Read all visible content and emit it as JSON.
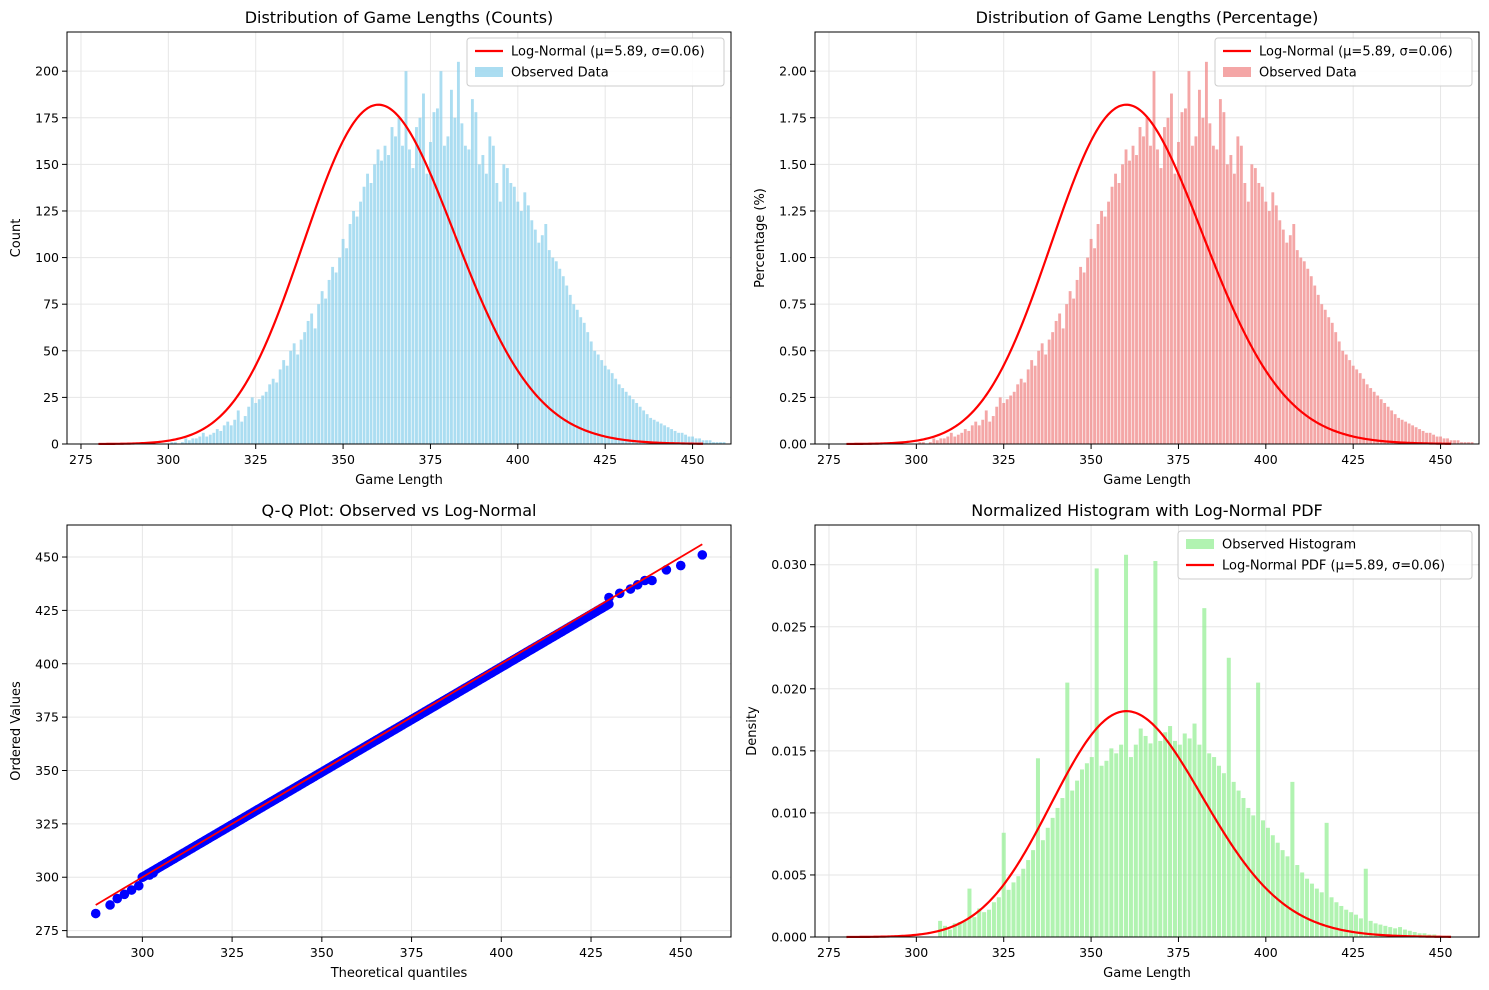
{
  "figure": {
    "colors": {
      "curve": "#ff0000",
      "bars_counts": "#87ceeb",
      "bars_percent": "#f08080",
      "bars_density": "#90ee90",
      "qq_points": "#0000ff",
      "grid": "#e6e6e6"
    }
  },
  "chart_data": [
    {
      "id": "counts",
      "type": "bar",
      "title": "Distribution of Game Lengths (Counts)",
      "xlabel": "Game Length",
      "ylabel": "Count",
      "xlim": [
        271,
        461
      ],
      "ylim": [
        0,
        221
      ],
      "xticks": [
        275,
        300,
        325,
        350,
        375,
        400,
        425,
        450
      ],
      "xtick_labels": [
        "275",
        "300",
        "325",
        "350",
        "375",
        "400",
        "425",
        "450"
      ],
      "yticks": [
        0,
        25,
        50,
        75,
        100,
        125,
        150,
        175,
        200
      ],
      "ytick_labels": [
        "0",
        "25",
        "50",
        "75",
        "100",
        "125",
        "150",
        "175",
        "200"
      ],
      "legend": [
        "Log-Normal (μ=5.89, σ=0.06)",
        "Observed Data"
      ],
      "legend_position": "top-right",
      "grid": true,
      "bar_color": "#87ceeb",
      "bar_alpha": 0.7,
      "x_start": 280,
      "bar_step": 1,
      "values": [
        0,
        0,
        0,
        0,
        0,
        0,
        0,
        0,
        0,
        0,
        0,
        0,
        0,
        0,
        0,
        0,
        0,
        0,
        0,
        0,
        0,
        1,
        1,
        0,
        1,
        3,
        2,
        3,
        3,
        4,
        6,
        4,
        5,
        6,
        8,
        7,
        10,
        12,
        10,
        13,
        18,
        12,
        15,
        20,
        25,
        22,
        24,
        26,
        28,
        32,
        35,
        33,
        40,
        45,
        42,
        50,
        54,
        48,
        56,
        60,
        66,
        70,
        62,
        75,
        82,
        78,
        88,
        95,
        92,
        100,
        110,
        105,
        118,
        125,
        122,
        130,
        138,
        145,
        140,
        150,
        158,
        152,
        160,
        155,
        170,
        165,
        175,
        160,
        200,
        158,
        148,
        170,
        175,
        188,
        145,
        162,
        178,
        180,
        200,
        160,
        165,
        190,
        175,
        205,
        172,
        160,
        158,
        185,
        178,
        150,
        155,
        145,
        165,
        160,
        140,
        130,
        150,
        148,
        140,
        138,
        130,
        125,
        135,
        128,
        120,
        115,
        108,
        112,
        118,
        104,
        100,
        98,
        94,
        90,
        85,
        80,
        75,
        72,
        68,
        65,
        60,
        55,
        50,
        48,
        45,
        42,
        40,
        38,
        35,
        32,
        30,
        28,
        26,
        24,
        22,
        20,
        18,
        16,
        14,
        13,
        12,
        11,
        10,
        9,
        8,
        7,
        6,
        6,
        5,
        4,
        4,
        3,
        3,
        2,
        2,
        2,
        1,
        1,
        1,
        1,
        0,
        0,
        0,
        0,
        0,
        0
      ],
      "fit_curve": {
        "type": "lognormal",
        "mu": 5.89,
        "sigma": 0.06,
        "x_range": [
          280,
          453
        ],
        "peak_value": 182,
        "color": "#ff0000"
      }
    },
    {
      "id": "percent",
      "type": "bar",
      "title": "Distribution of Game Lengths (Percentage)",
      "xlabel": "Game Length",
      "ylabel": "Percentage (%)",
      "xlim": [
        271,
        461
      ],
      "ylim": [
        0,
        2.21
      ],
      "xticks": [
        275,
        300,
        325,
        350,
        375,
        400,
        425,
        450
      ],
      "xtick_labels": [
        "275",
        "300",
        "325",
        "350",
        "375",
        "400",
        "425",
        "450"
      ],
      "yticks": [
        0,
        0.25,
        0.5,
        0.75,
        1.0,
        1.25,
        1.5,
        1.75,
        2.0
      ],
      "ytick_labels": [
        "0.00",
        "0.25",
        "0.50",
        "0.75",
        "1.00",
        "1.25",
        "1.50",
        "1.75",
        "2.00"
      ],
      "legend": [
        "Log-Normal (μ=5.89, σ=0.06)",
        "Observed Data"
      ],
      "legend_position": "top-right",
      "grid": true,
      "bar_color": "#f08080",
      "bar_alpha": 0.7,
      "x_start": 280,
      "bar_step": 1,
      "values": [
        0,
        0,
        0,
        0,
        0,
        0,
        0,
        0,
        0,
        0,
        0,
        0,
        0,
        0,
        0,
        0,
        0,
        0,
        0,
        0,
        0,
        0.01,
        0.01,
        0,
        0.01,
        0.03,
        0.02,
        0.03,
        0.03,
        0.04,
        0.06,
        0.04,
        0.05,
        0.06,
        0.08,
        0.07,
        0.1,
        0.12,
        0.1,
        0.13,
        0.18,
        0.12,
        0.15,
        0.2,
        0.25,
        0.22,
        0.24,
        0.26,
        0.28,
        0.32,
        0.35,
        0.33,
        0.4,
        0.45,
        0.42,
        0.5,
        0.54,
        0.48,
        0.56,
        0.6,
        0.66,
        0.7,
        0.62,
        0.75,
        0.82,
        0.78,
        0.88,
        0.95,
        0.92,
        1.0,
        1.1,
        1.05,
        1.18,
        1.25,
        1.22,
        1.3,
        1.38,
        1.45,
        1.4,
        1.5,
        1.58,
        1.52,
        1.6,
        1.55,
        1.7,
        1.65,
        1.75,
        1.6,
        2.0,
        1.58,
        1.48,
        1.7,
        1.75,
        1.88,
        1.45,
        1.62,
        1.78,
        1.8,
        2.0,
        1.6,
        1.65,
        1.9,
        1.75,
        2.05,
        1.72,
        1.6,
        1.58,
        1.85,
        1.78,
        1.5,
        1.55,
        1.45,
        1.65,
        1.6,
        1.4,
        1.3,
        1.5,
        1.48,
        1.4,
        1.38,
        1.3,
        1.25,
        1.35,
        1.28,
        1.2,
        1.15,
        1.08,
        1.12,
        1.18,
        1.04,
        1.0,
        0.98,
        0.94,
        0.9,
        0.85,
        0.8,
        0.75,
        0.72,
        0.68,
        0.65,
        0.6,
        0.55,
        0.5,
        0.48,
        0.45,
        0.42,
        0.4,
        0.38,
        0.35,
        0.32,
        0.3,
        0.28,
        0.26,
        0.24,
        0.22,
        0.2,
        0.18,
        0.16,
        0.14,
        0.13,
        0.12,
        0.11,
        0.1,
        0.09,
        0.08,
        0.07,
        0.06,
        0.06,
        0.05,
        0.04,
        0.04,
        0.03,
        0.03,
        0.02,
        0.02,
        0.02,
        0.01,
        0.01,
        0.01,
        0.01,
        0,
        0,
        0,
        0,
        0,
        0
      ],
      "fit_curve": {
        "type": "lognormal",
        "mu": 5.89,
        "sigma": 0.06,
        "x_range": [
          280,
          453
        ],
        "peak_value": 1.82,
        "color": "#ff0000"
      }
    },
    {
      "id": "qq",
      "type": "scatter",
      "title": "Q-Q Plot: Observed vs Log-Normal",
      "xlabel": "Theoretical quantiles",
      "ylabel": "Ordered Values",
      "xlim": [
        279,
        464
      ],
      "ylim": [
        272,
        465
      ],
      "xticks": [
        300,
        325,
        350,
        375,
        400,
        425,
        450
      ],
      "xtick_labels": [
        "300",
        "325",
        "350",
        "375",
        "400",
        "425",
        "450"
      ],
      "yticks": [
        275,
        300,
        325,
        350,
        375,
        400,
        425,
        450
      ],
      "ytick_labels": [
        "275",
        "300",
        "325",
        "350",
        "375",
        "400",
        "425",
        "450"
      ],
      "grid": true,
      "point_color": "#0000ff",
      "outlier_points": [
        [
          287,
          283
        ],
        [
          291,
          287
        ],
        [
          293,
          290
        ],
        [
          295,
          292
        ],
        [
          297,
          294
        ],
        [
          299,
          296
        ],
        [
          300,
          300
        ],
        [
          302,
          301
        ],
        [
          303,
          302
        ],
        [
          430,
          431
        ],
        [
          433,
          433
        ],
        [
          436,
          435
        ],
        [
          438,
          437
        ],
        [
          440,
          439
        ],
        [
          442,
          439
        ],
        [
          446,
          444
        ],
        [
          450,
          446
        ],
        [
          456,
          451
        ]
      ],
      "dense_band": {
        "x_range": [
          300,
          430
        ],
        "y_range": [
          300,
          428
        ]
      },
      "reference_line": {
        "x": [
          287,
          456
        ],
        "y": [
          287,
          456
        ],
        "color": "#ff0000"
      }
    },
    {
      "id": "density",
      "type": "bar",
      "title": "Normalized Histogram with Log-Normal PDF",
      "xlabel": "Game Length",
      "ylabel": "Density",
      "xlim": [
        271,
        461
      ],
      "ylim": [
        0,
        0.0332
      ],
      "xticks": [
        275,
        300,
        325,
        350,
        375,
        400,
        425,
        450
      ],
      "xtick_labels": [
        "275",
        "300",
        "325",
        "350",
        "375",
        "400",
        "425",
        "450"
      ],
      "yticks": [
        0,
        0.005,
        0.01,
        0.015,
        0.02,
        0.025,
        0.03
      ],
      "ytick_labels": [
        "0.000",
        "0.005",
        "0.010",
        "0.015",
        "0.020",
        "0.025",
        "0.030"
      ],
      "legend": [
        "Observed Histogram",
        "Log-Normal PDF (μ=5.89, σ=0.06)"
      ],
      "legend_position": "top-right",
      "grid": true,
      "bar_color": "#90ee90",
      "bar_alpha": 0.7,
      "x_start": 283,
      "bar_step": 1.4,
      "values": [
        0,
        0,
        0,
        0,
        0,
        0,
        0,
        0,
        0,
        0,
        0,
        0,
        0,
        0,
        0,
        0,
        0,
        0.0013,
        0.0009,
        0.0006,
        0.0011,
        0.0012,
        0.0013,
        0.0039,
        0.0016,
        0.0023,
        0.002,
        0.0022,
        0.0028,
        0.0032,
        0.0084,
        0.0038,
        0.0044,
        0.0049,
        0.0055,
        0.0062,
        0.007,
        0.0144,
        0.0078,
        0.0088,
        0.0096,
        0.0104,
        0.0112,
        0.0205,
        0.0118,
        0.0126,
        0.0135,
        0.014,
        0.0145,
        0.0297,
        0.0138,
        0.0142,
        0.0152,
        0.0148,
        0.0155,
        0.0308,
        0.0145,
        0.0155,
        0.0168,
        0.0162,
        0.0156,
        0.0303,
        0.0158,
        0.0165,
        0.017,
        0.0158,
        0.0155,
        0.0164,
        0.016,
        0.0172,
        0.0155,
        0.0265,
        0.0148,
        0.0145,
        0.0138,
        0.0132,
        0.0225,
        0.0125,
        0.0118,
        0.0112,
        0.0104,
        0.0098,
        0.0205,
        0.0094,
        0.0088,
        0.0082,
        0.0076,
        0.007,
        0.0065,
        0.0125,
        0.0058,
        0.0052,
        0.0047,
        0.0043,
        0.0039,
        0.0036,
        0.0092,
        0.0032,
        0.0028,
        0.0025,
        0.0022,
        0.002,
        0.0018,
        0.0015,
        0.0055,
        0.0013,
        0.0011,
        0.001,
        0.0009,
        0.0008,
        0.0007,
        0.0008,
        0.0006,
        0.0005,
        0.0004,
        0.0003,
        0.0003,
        0.0002,
        0.0002,
        0.0001,
        0.0001,
        0.0001,
        0,
        0,
        0,
        0,
        0,
        0,
        0,
        0,
        0,
        0,
        0,
        0,
        0,
        0,
        0
      ],
      "fit_curve": {
        "type": "lognormal",
        "mu": 5.89,
        "sigma": 0.06,
        "x_range": [
          280,
          453
        ],
        "peak_value": 0.0182,
        "color": "#ff0000"
      }
    }
  ]
}
